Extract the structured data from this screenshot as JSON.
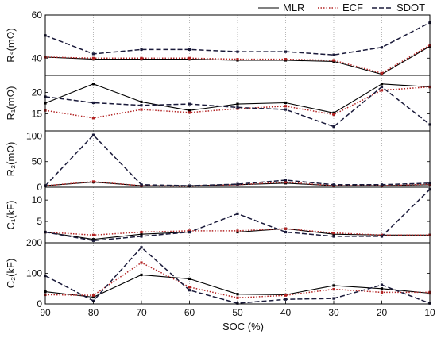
{
  "chart_data": {
    "type": "line",
    "xlabel": "SOC (%)",
    "x": [
      90,
      80,
      70,
      60,
      50,
      40,
      30,
      20,
      10
    ],
    "x_ticks": [
      "90",
      "80",
      "70",
      "60",
      "50",
      "40",
      "30",
      "20",
      "10"
    ],
    "xlim": [
      90,
      10
    ],
    "legend": [
      {
        "name": "MLR",
        "color": "#000000",
        "dash": "solid"
      },
      {
        "name": "ECF",
        "color": "#b22222",
        "dash": "dotted"
      },
      {
        "name": "SDOT",
        "color": "#1a1a3a",
        "dash": "dashed"
      }
    ],
    "panels": [
      {
        "ylabel": "Rₛ(mΩ)",
        "ylim": [
          32,
          60
        ],
        "yticks": [
          40,
          60
        ],
        "series": [
          {
            "name": "MLR",
            "values": [
              40.5,
              39.5,
              39.5,
              39.5,
              39,
              39,
              38.5,
              32.5,
              45.5
            ]
          },
          {
            "name": "ECF",
            "values": [
              40.5,
              40,
              40,
              40,
              39.5,
              39.5,
              39,
              33,
              46
            ]
          },
          {
            "name": "SDOT",
            "values": [
              50.5,
              42,
              44,
              44,
              43,
              43,
              41.5,
              45,
              56.5
            ]
          }
        ]
      },
      {
        "ylabel": "R₁(mΩ)",
        "ylim": [
          11,
          24
        ],
        "yticks": [
          15,
          20
        ],
        "series": [
          {
            "name": "MLR",
            "values": [
              17.5,
              22,
              17.8,
              15.8,
              17.3,
              17.6,
              15.2,
              22,
              21.3
            ]
          },
          {
            "name": "ECF",
            "values": [
              15.8,
              14,
              16,
              15.3,
              16.2,
              16.8,
              14.8,
              20.5,
              21.3
            ]
          },
          {
            "name": "SDOT",
            "values": [
              19,
              17.6,
              17,
              17.3,
              16.5,
              16,
              12,
              21.3,
              12.5
            ]
          }
        ]
      },
      {
        "ylabel": "R₂(mΩ)",
        "ylim": [
          0,
          110
        ],
        "yticks": [
          0,
          50,
          100
        ],
        "series": [
          {
            "name": "MLR",
            "values": [
              3,
              10,
              3,
              3,
              5,
              8,
              3,
              3,
              5
            ]
          },
          {
            "name": "ECF",
            "values": [
              3,
              11,
              3,
              2,
              5,
              10,
              3,
              3,
              6
            ]
          },
          {
            "name": "SDOT",
            "values": [
              3,
              102,
              5,
              3,
              6,
              14,
              5,
              5,
              8
            ]
          }
        ]
      },
      {
        "ylabel": "C₁(kF)",
        "ylim": [
          0,
          13
        ],
        "yticks": [
          5,
          10
        ],
        "series": [
          {
            "name": "MLR",
            "values": [
              2.5,
              0.8,
              2,
              2.5,
              2.5,
              3.3,
              2,
              1.8,
              1.8
            ]
          },
          {
            "name": "ECF",
            "values": [
              2.5,
              1.8,
              2.5,
              2.8,
              2.8,
              3.3,
              2.3,
              1.8,
              1.8
            ]
          },
          {
            "name": "SDOT",
            "values": [
              2.5,
              0.5,
              1.5,
              2.5,
              6.8,
              2.5,
              1.5,
              1.5,
              12.5
            ]
          }
        ]
      },
      {
        "ylabel": "C₂(kF)",
        "ylim": [
          0,
          200
        ],
        "yticks": [
          0,
          100,
          200
        ],
        "series": [
          {
            "name": "MLR",
            "values": [
              40,
              22,
              95,
              82,
              32,
              30,
              60,
              50,
              35
            ]
          },
          {
            "name": "ECF",
            "values": [
              30,
              28,
              135,
              55,
              20,
              28,
              48,
              38,
              38
            ]
          },
          {
            "name": "SDOT",
            "values": [
              92,
              10,
              185,
              45,
              2,
              15,
              18,
              62,
              2
            ]
          }
        ]
      }
    ]
  }
}
